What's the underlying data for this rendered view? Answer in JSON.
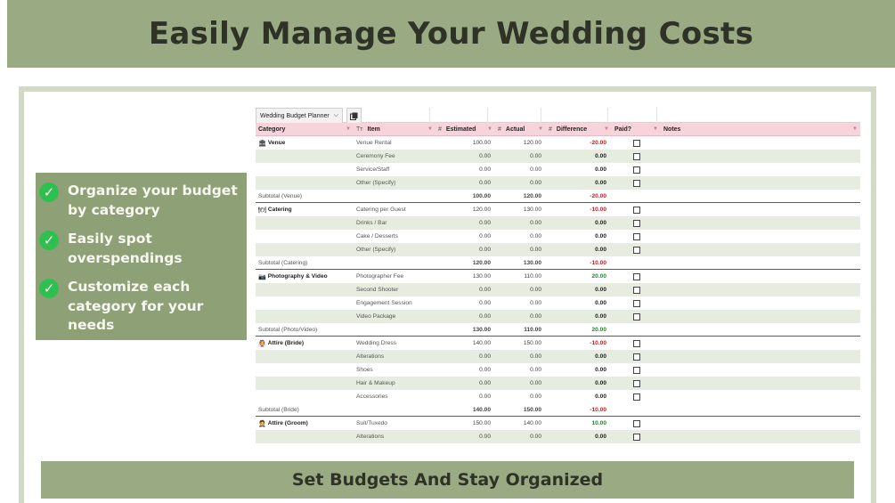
{
  "banner": {
    "title": "Easily Manage Your Wedding Costs"
  },
  "features": [
    {
      "text": "Organize your budget by category"
    },
    {
      "text": "Easily spot overspendings"
    },
    {
      "text": "Customize each category for your needs"
    }
  ],
  "sheet": {
    "tab_label": "Wedding Budget Planner",
    "headers": {
      "category": "Category",
      "item_prefix": "Tт",
      "item": "Item",
      "hash": "#",
      "estimated": "Estimated",
      "actual": "Actual",
      "difference": "Difference",
      "paid": "Paid?",
      "notes": "Notes"
    },
    "rows": [
      {
        "category": "Venue",
        "icon": "🏛",
        "item": "Venue Rental",
        "est": "100.00",
        "act": "120.00",
        "diff": "-20.00",
        "sign": "neg",
        "alt": false,
        "sub": false,
        "cb": true
      },
      {
        "category": "",
        "icon": "",
        "item": "Ceremony Fee",
        "est": "0.00",
        "act": "0.00",
        "diff": "0.00",
        "sign": "zero",
        "alt": true,
        "sub": false,
        "cb": true
      },
      {
        "category": "",
        "icon": "",
        "item": "Service/Staff",
        "est": "0.00",
        "act": "0.00",
        "diff": "0.00",
        "sign": "zero",
        "alt": false,
        "sub": false,
        "cb": true
      },
      {
        "category": "",
        "icon": "",
        "item": "Other (Specify)",
        "est": "0.00",
        "act": "0.00",
        "diff": "0.00",
        "sign": "zero",
        "alt": true,
        "sub": false,
        "cb": true
      },
      {
        "category": "Subtotal (Venue)",
        "icon": "",
        "item": "",
        "est": "100.00",
        "act": "120.00",
        "diff": "-20.00",
        "sign": "neg",
        "alt": false,
        "sub": true,
        "cb": false
      },
      {
        "category": "Catering",
        "icon": "🍽",
        "item": "Catering per Guest",
        "est": "120.00",
        "act": "130.00",
        "diff": "-10.00",
        "sign": "neg",
        "alt": false,
        "sub": false,
        "cb": true
      },
      {
        "category": "",
        "icon": "",
        "item": "Drinks / Bar",
        "est": "0.00",
        "act": "0.00",
        "diff": "0.00",
        "sign": "zero",
        "alt": true,
        "sub": false,
        "cb": true
      },
      {
        "category": "",
        "icon": "",
        "item": "Cake / Desserts",
        "est": "0.00",
        "act": "0.00",
        "diff": "0.00",
        "sign": "zero",
        "alt": false,
        "sub": false,
        "cb": true
      },
      {
        "category": "",
        "icon": "",
        "item": "Other (Specify)",
        "est": "0.00",
        "act": "0.00",
        "diff": "0.00",
        "sign": "zero",
        "alt": true,
        "sub": false,
        "cb": true
      },
      {
        "category": "Subtotal (Catering)",
        "icon": "",
        "item": "",
        "est": "120.00",
        "act": "130.00",
        "diff": "-10.00",
        "sign": "neg",
        "alt": false,
        "sub": true,
        "cb": false
      },
      {
        "category": "Photography & Video",
        "icon": "📷",
        "item": "Photographer Fee",
        "est": "130.00",
        "act": "110.00",
        "diff": "20.00",
        "sign": "pos",
        "alt": false,
        "sub": false,
        "cb": true
      },
      {
        "category": "",
        "icon": "",
        "item": "Second Shooter",
        "est": "0.00",
        "act": "0.00",
        "diff": "0.00",
        "sign": "zero",
        "alt": true,
        "sub": false,
        "cb": true
      },
      {
        "category": "",
        "icon": "",
        "item": "Engagement Session",
        "est": "0.00",
        "act": "0.00",
        "diff": "0.00",
        "sign": "zero",
        "alt": false,
        "sub": false,
        "cb": true
      },
      {
        "category": "",
        "icon": "",
        "item": "Video Package",
        "est": "0.00",
        "act": "0.00",
        "diff": "0.00",
        "sign": "zero",
        "alt": true,
        "sub": false,
        "cb": true
      },
      {
        "category": "Subtotal (Photo/Video)",
        "icon": "",
        "item": "",
        "est": "130.00",
        "act": "110.00",
        "diff": "20.00",
        "sign": "pos",
        "alt": false,
        "sub": true,
        "cb": false
      },
      {
        "category": "Attire (Bride)",
        "icon": "👰",
        "item": "Wedding Dress",
        "est": "140.00",
        "act": "150.00",
        "diff": "-10.00",
        "sign": "neg",
        "alt": false,
        "sub": false,
        "cb": true
      },
      {
        "category": "",
        "icon": "",
        "item": "Alterations",
        "est": "0.00",
        "act": "0.00",
        "diff": "0.00",
        "sign": "zero",
        "alt": true,
        "sub": false,
        "cb": true
      },
      {
        "category": "",
        "icon": "",
        "item": "Shoes",
        "est": "0.00",
        "act": "0.00",
        "diff": "0.00",
        "sign": "zero",
        "alt": false,
        "sub": false,
        "cb": true
      },
      {
        "category": "",
        "icon": "",
        "item": "Hair & Makeup",
        "est": "0.00",
        "act": "0.00",
        "diff": "0.00",
        "sign": "zero",
        "alt": true,
        "sub": false,
        "cb": true
      },
      {
        "category": "",
        "icon": "",
        "item": "Accessories",
        "est": "0.00",
        "act": "0.00",
        "diff": "0.00",
        "sign": "zero",
        "alt": false,
        "sub": false,
        "cb": true
      },
      {
        "category": "Subtotal (Bride)",
        "icon": "",
        "item": "",
        "est": "140.00",
        "act": "150.00",
        "diff": "-10.00",
        "sign": "neg",
        "alt": false,
        "sub": true,
        "cb": false
      },
      {
        "category": "Attire (Groom)",
        "icon": "🤵",
        "item": "Suit/Tuxedo",
        "est": "150.00",
        "act": "140.00",
        "diff": "10.00",
        "sign": "pos",
        "alt": false,
        "sub": false,
        "cb": true
      },
      {
        "category": "",
        "icon": "",
        "item": "Alterations",
        "est": "0.00",
        "act": "0.00",
        "diff": "0.00",
        "sign": "zero",
        "alt": true,
        "sub": false,
        "cb": true
      }
    ]
  },
  "bottom_banner": {
    "text": "Set Budgets And Stay Organized"
  },
  "colors": {
    "banner": "#9aab83",
    "features_bg": "#8ea176",
    "check": "#2fbf4e",
    "header_pink": "#f7d4dc",
    "row_alt": "#e6ecdf",
    "negative": "#b3262b",
    "positive": "#2e7d32"
  }
}
